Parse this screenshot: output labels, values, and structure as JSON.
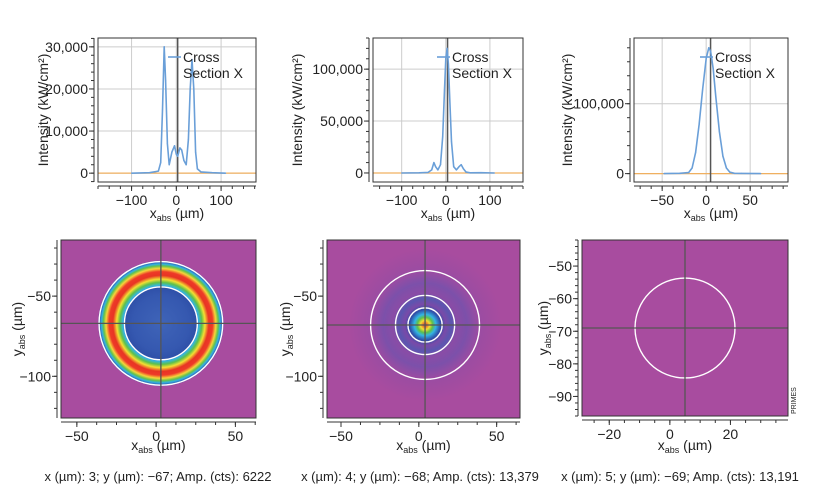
{
  "chart_data": [
    {
      "type": "line",
      "ylabel": "Intensity (kW/cm²)",
      "xlabel": {
        "main": "x",
        "sub": "abs",
        "unit": "(µm)"
      },
      "legend": "Cross Section X",
      "legend_lines": [
        "Cross",
        "Section X"
      ],
      "legend_placement": "top-center",
      "xlim": [
        -175,
        178
      ],
      "ylim": [
        -2100,
        32100
      ],
      "xticks": [
        -100,
        0,
        100
      ],
      "xtick_labels": [
        "−100",
        "0",
        "100"
      ],
      "yticks": [
        0,
        10000,
        20000,
        30000
      ],
      "ytick_labels": [
        "0",
        "10,000",
        "20,000",
        "30,000"
      ],
      "grid": true,
      "crosshair_x": 3,
      "series_color": "#6a9fd8",
      "baseline_color": "#f0b060",
      "x": [
        -100,
        -60,
        -40,
        -35,
        -31,
        -27,
        -24,
        -20,
        -16,
        -10,
        -4,
        0,
        3,
        8,
        12,
        17,
        22,
        27,
        31,
        35,
        39,
        43,
        47,
        55,
        80,
        110
      ],
      "y": [
        0,
        100,
        500,
        2500,
        15000,
        30000,
        22000,
        7000,
        2000,
        5000,
        6500,
        4500,
        4000,
        6000,
        5500,
        3000,
        2000,
        8000,
        20000,
        27000,
        20000,
        5000,
        1000,
        300,
        100,
        0
      ]
    },
    {
      "type": "line",
      "ylabel": "Intensity (kW/cm²)",
      "xlabel": {
        "main": "x",
        "sub": "abs",
        "unit": "(µm)"
      },
      "legend": "Cross Section X",
      "legend_lines": [
        "Cross",
        "Section X"
      ],
      "legend_placement": "top-center",
      "xlim": [
        -165,
        175
      ],
      "ylim": [
        -8700,
        130000
      ],
      "xticks": [
        -100,
        0,
        100
      ],
      "xtick_labels": [
        "−100",
        "0",
        "100"
      ],
      "yticks": [
        0,
        50000,
        100000
      ],
      "ytick_labels": [
        "0",
        "50,000",
        "100,000"
      ],
      "grid": true,
      "crosshair_x": 4,
      "series_color": "#6a9fd8",
      "baseline_color": "#f0b060",
      "x": [
        -100,
        -60,
        -40,
        -32,
        -27,
        -23,
        -18,
        -12,
        -7,
        -3,
        0,
        3,
        6,
        9,
        13,
        18,
        24,
        30,
        35,
        40,
        46,
        55,
        80,
        110
      ],
      "y": [
        0,
        200,
        500,
        3000,
        10000,
        6000,
        3000,
        8000,
        35000,
        80000,
        110000,
        120000,
        105000,
        70000,
        30000,
        6000,
        3000,
        6000,
        8000,
        4000,
        800,
        200,
        300,
        0
      ]
    },
    {
      "type": "line",
      "ylabel": "Intensity (kW/cm²)",
      "xlabel": {
        "main": "x",
        "sub": "abs",
        "unit": "(µm)"
      },
      "legend": "Cross Section X",
      "legend_lines": [
        "Cross",
        "Section X"
      ],
      "legend_placement": "top-center",
      "xlim": [
        -82,
        93
      ],
      "ylim": [
        -12000,
        194000
      ],
      "xticks": [
        -50,
        0,
        50
      ],
      "xtick_labels": [
        "−50",
        "0",
        "50"
      ],
      "yticks": [
        0,
        100000
      ],
      "ytick_labels": [
        "0",
        "100,000"
      ],
      "grid": true,
      "crosshair_x": 5,
      "series_color": "#6a9fd8",
      "baseline_color": "#f0b060",
      "x": [
        -48,
        -30,
        -20,
        -16,
        -12,
        -8,
        -4,
        0,
        3,
        5,
        8,
        11,
        15,
        19,
        23,
        27,
        32,
        40,
        62
      ],
      "y": [
        0,
        500,
        1500,
        8000,
        30000,
        70000,
        120000,
        165000,
        180000,
        175000,
        150000,
        110000,
        60000,
        25000,
        8000,
        2000,
        500,
        300,
        0
      ]
    },
    {
      "type": "heatmap",
      "ylabel": {
        "main": "y",
        "sub": "abs",
        "unit": "(µm)"
      },
      "xlabel": {
        "main": "x",
        "sub": "abs",
        "unit": "(µm)"
      },
      "xlim": [
        -60,
        63
      ],
      "ylim": [
        -126,
        -15
      ],
      "xticks": [
        -50,
        0,
        50
      ],
      "xtick_labels": [
        "−50",
        "0",
        "50"
      ],
      "yticks": [
        -50,
        -100
      ],
      "ytick_labels": [
        "−50",
        "−100"
      ],
      "crosshair": {
        "x": 3,
        "y": -67
      },
      "profile": "ring",
      "white_circles_radius_um": [
        39,
        23
      ],
      "caption": "x (µm): 3; y (µm): −67; Amp. (cts): 6222"
    },
    {
      "type": "heatmap",
      "ylabel": {
        "main": "y",
        "sub": "abs",
        "unit": "(µm)"
      },
      "xlabel": {
        "main": "x",
        "sub": "abs",
        "unit": "(µm)"
      },
      "xlim": [
        -59,
        65
      ],
      "ylim": [
        -126,
        -15
      ],
      "xticks": [
        -50,
        0,
        50
      ],
      "xtick_labels": [
        "−50",
        "0",
        "50"
      ],
      "yticks": [
        -50,
        -100
      ],
      "ytick_labels": [
        "−50",
        "−100"
      ],
      "crosshair": {
        "x": 4,
        "y": -68
      },
      "profile": "airy",
      "white_circles_radius_um": [
        35,
        19,
        11
      ],
      "caption": "x (µm): 4; y (µm): −68; Amp. (cts): 13,379"
    },
    {
      "type": "heatmap",
      "ylabel": {
        "main": "y",
        "sub": "abs",
        "unit": "(µm)"
      },
      "xlabel": {
        "main": "x",
        "sub": "abs",
        "unit": "(µm)"
      },
      "xlim": [
        -29,
        39
      ],
      "ylim": [
        -96,
        -42
      ],
      "xticks": [
        -20,
        0,
        20
      ],
      "xtick_labels": [
        "−20",
        "0",
        "20"
      ],
      "yticks": [
        -50,
        -60,
        -70,
        -80,
        -90
      ],
      "ytick_labels": [
        "−50",
        "−60",
        "−70",
        "−80",
        "−90"
      ],
      "crosshair": {
        "x": 5,
        "y": -69
      },
      "profile": "gaussian",
      "white_circles_radius_um": [
        16.5
      ],
      "caption": "x (µm): 5; y (µm): −69; Amp. (cts): 13,191",
      "watermark": "PRIMES"
    }
  ],
  "colors": {
    "background_magenta": "#a84c9f",
    "axis": "#333333",
    "grid": "#cccccc",
    "crosshair": "#555555"
  }
}
